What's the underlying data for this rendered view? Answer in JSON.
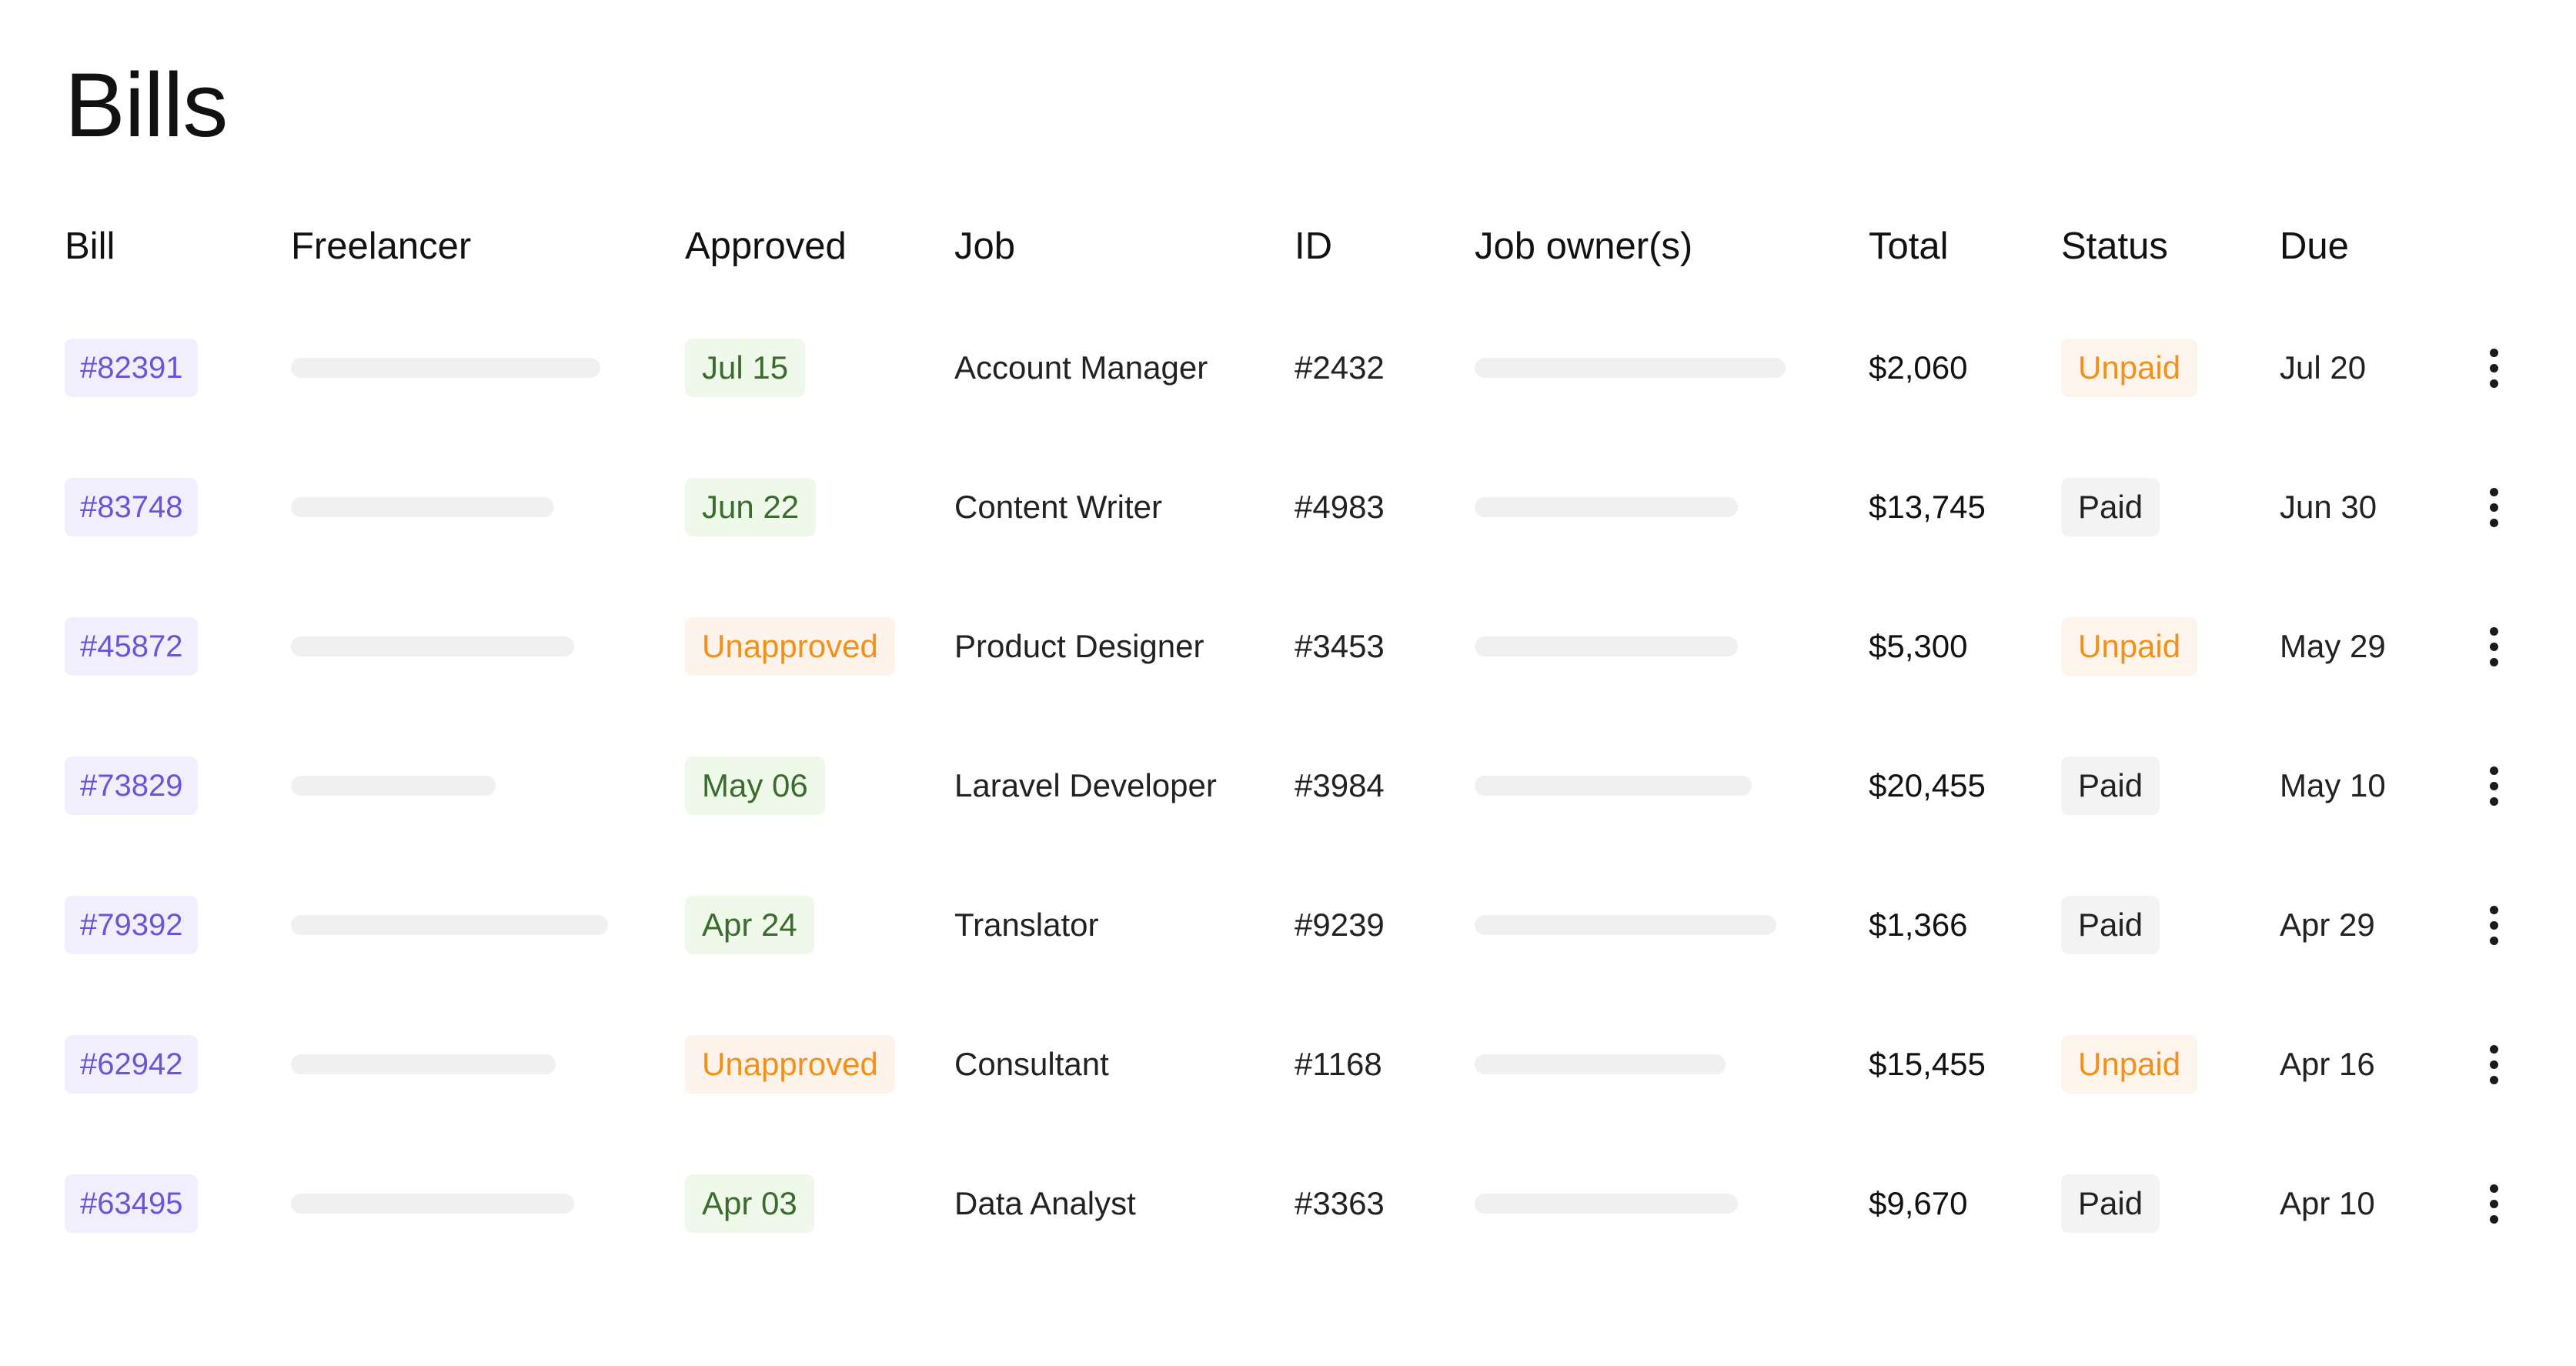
{
  "page": {
    "title": "Bills"
  },
  "table": {
    "headers": {
      "bill": "Bill",
      "freelancer": "Freelancer",
      "approved": "Approved",
      "job": "Job",
      "id": "ID",
      "job_owners": "Job owner(s)",
      "total": "Total",
      "status": "Status",
      "due": "Due"
    },
    "rows": [
      {
        "bill": "#82391",
        "approved": "Jul 15",
        "approved_state": "approved",
        "job": "Account Manager",
        "id": "#2432",
        "total": "$2,060",
        "status": "Unpaid",
        "status_state": "unpaid",
        "due": "Jul 20"
      },
      {
        "bill": "#83748",
        "approved": "Jun 22",
        "approved_state": "approved",
        "job": "Content Writer",
        "id": "#4983",
        "total": "$13,745",
        "status": "Paid",
        "status_state": "paid",
        "due": "Jun 30"
      },
      {
        "bill": "#45872",
        "approved": "Unapproved",
        "approved_state": "unapproved",
        "job": "Product Designer",
        "id": "#3453",
        "total": "$5,300",
        "status": "Unpaid",
        "status_state": "unpaid",
        "due": "May 29"
      },
      {
        "bill": "#73829",
        "approved": "May 06",
        "approved_state": "approved",
        "job": "Laravel Developer",
        "id": "#3984",
        "total": "$20,455",
        "status": "Paid",
        "status_state": "paid",
        "due": "May 10"
      },
      {
        "bill": "#79392",
        "approved": "Apr 24",
        "approved_state": "approved",
        "job": "Translator",
        "id": "#9239",
        "total": "$1,366",
        "status": "Paid",
        "status_state": "paid",
        "due": "Apr 29"
      },
      {
        "bill": "#62942",
        "approved": "Unapproved",
        "approved_state": "unapproved",
        "job": "Consultant",
        "id": "#1168",
        "total": "$15,455",
        "status": "Unpaid",
        "status_state": "unpaid",
        "due": "Apr 16"
      },
      {
        "bill": "#63495",
        "approved": "Apr 03",
        "approved_state": "approved",
        "job": "Data Analyst",
        "id": "#3363",
        "total": "$9,670",
        "status": "Paid",
        "status_state": "paid",
        "due": "Apr 10"
      }
    ]
  },
  "colors": {
    "bill_text": "#6b55d6",
    "bill_bg": "#f1effd",
    "approved_text": "#3b6b2e",
    "approved_bg": "#eef9e9",
    "unapproved_text": "#f39019",
    "unapproved_bg": "#fdf3ea",
    "paid_bg": "#f3f3f3",
    "skeleton": "#f0f0f0"
  },
  "icons": {
    "row_menu": "more-vertical-icon"
  }
}
